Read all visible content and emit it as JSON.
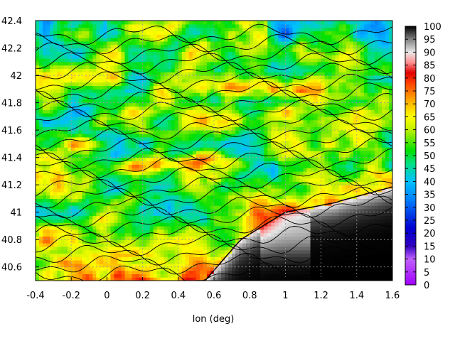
{
  "chart_data": {
    "type": "heatmap",
    "title": "",
    "xlabel": "lon (deg)",
    "ylabel": "",
    "xlim": [
      -0.4,
      1.6
    ],
    "ylim": [
      40.5,
      42.4
    ],
    "xticks": [
      "-0.4",
      "-0.2",
      "0",
      "0.2",
      "0.4",
      "0.6",
      "0.8",
      "1",
      "1.2",
      "1.4",
      "1.6"
    ],
    "yticks": [
      "40.6",
      "40.8",
      "41",
      "41.2",
      "41.4",
      "41.6",
      "41.8",
      "42",
      "42.2",
      "42.4"
    ],
    "grid": true,
    "colorbar": {
      "range": [
        0,
        100
      ],
      "ticks": [
        "0",
        "5",
        "10",
        "15",
        "20",
        "25",
        "30",
        "35",
        "40",
        "45",
        "50",
        "55",
        "60",
        "65",
        "70",
        "75",
        "80",
        "85",
        "90",
        "95",
        "100"
      ]
    },
    "overlay": "contour lines (topography)",
    "sea_region": "lower-right corner (lon > ~0.7, lat < ~41.2), values ~90-100 (grey/black)"
  },
  "colors": {
    "palette": [
      "#9b00ff",
      "#0000c8",
      "#00a0ff",
      "#00e600",
      "#ffff00",
      "#ff8000",
      "#e60000",
      "#ffffff",
      "#000000"
    ]
  }
}
